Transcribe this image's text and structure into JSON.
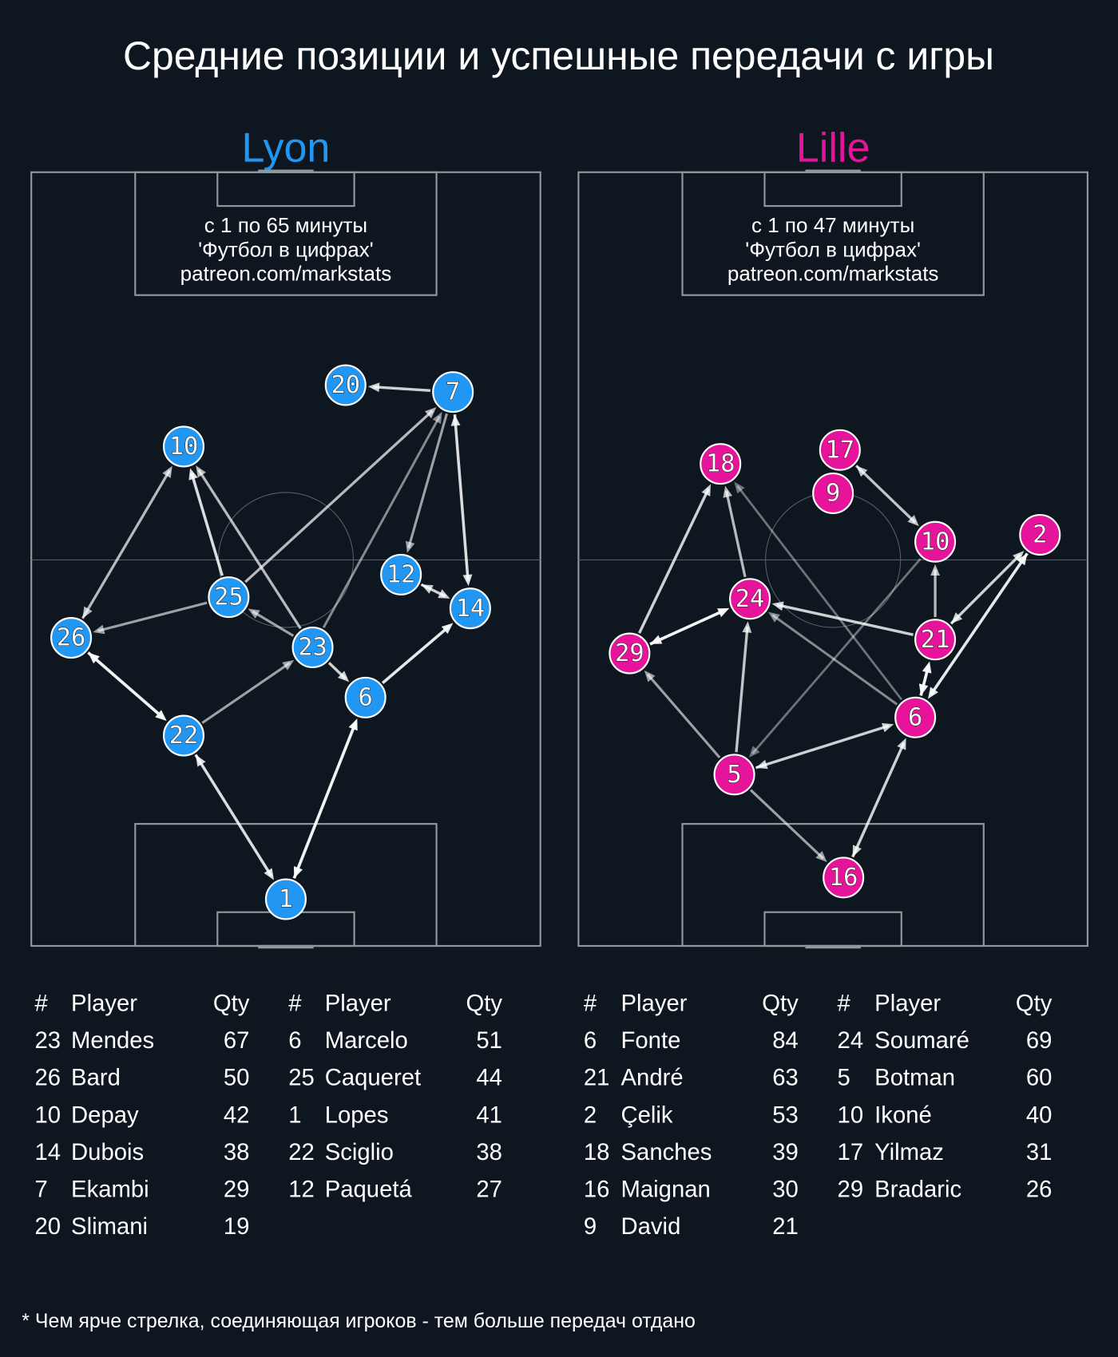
{
  "title": "Средние позиции и успешные передачи с игры",
  "teams": [
    {
      "name": "Lyon",
      "note": [
        "с 1 по 65 минуты",
        "'Футбол в цифрах'",
        "patreon.com/markstats"
      ],
      "nodes": [
        20,
        7,
        10,
        12,
        14,
        25,
        26,
        23,
        6,
        22,
        1
      ],
      "table": {
        "header": [
          "#",
          "Player",
          "Qty"
        ],
        "columns": [
          [
            [
              23,
              "Mendes",
              67
            ],
            [
              26,
              "Bard",
              50
            ],
            [
              10,
              "Depay",
              42
            ],
            [
              14,
              "Dubois",
              38
            ],
            [
              7,
              "Ekambi",
              29
            ],
            [
              20,
              "Slimani",
              19
            ]
          ],
          [
            [
              6,
              "Marcelo",
              51
            ],
            [
              25,
              "Caqueret",
              44
            ],
            [
              1,
              "Lopes",
              41
            ],
            [
              22,
              "Sciglio",
              38
            ],
            [
              12,
              "Paquetá",
              27
            ]
          ]
        ]
      }
    },
    {
      "name": "Lille",
      "note": [
        "с 1 по 47 минуты",
        "'Футбол в цифрах'",
        "patreon.com/markstats"
      ],
      "nodes": [
        18,
        17,
        9,
        10,
        2,
        24,
        29,
        21,
        6,
        5,
        16
      ],
      "table": {
        "header": [
          "#",
          "Player",
          "Qty"
        ],
        "columns": [
          [
            [
              6,
              "Fonte",
              84
            ],
            [
              21,
              "André",
              63
            ],
            [
              2,
              "Çelik",
              53
            ],
            [
              18,
              "Sanches",
              39
            ],
            [
              16,
              "Maignan",
              30
            ],
            [
              9,
              "David",
              21
            ]
          ],
          [
            [
              24,
              "Soumaré",
              69
            ],
            [
              5,
              "Botman",
              60
            ],
            [
              10,
              "Ikoné",
              40
            ],
            [
              17,
              "Yilmaz",
              31
            ],
            [
              29,
              "Bradaric",
              26
            ]
          ]
        ]
      }
    }
  ],
  "footnote": "* Чем ярче стрелка, соединяющая игроков - тем больше передач отдано"
}
